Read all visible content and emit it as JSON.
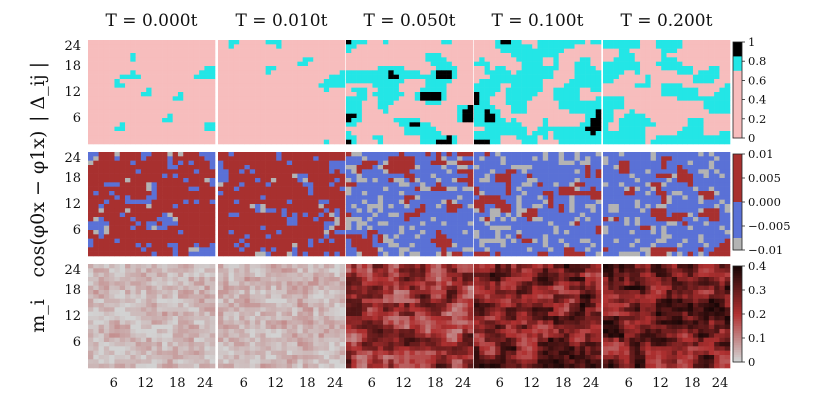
{
  "chart_data": {
    "type": "heatmap",
    "columns": [
      "T = 0.000t",
      "T = 0.010t",
      "T = 0.050t",
      "T = 0.100t",
      "T = 0.200t"
    ],
    "rows": [
      {
        "ylabel": "| Δ_ij |",
        "colorbar_ticks": [
          "1",
          "0.8",
          "0.6",
          "0.4",
          "0.2",
          "0"
        ],
        "vlim": [
          0,
          1
        ],
        "colors": {
          "low": "#f7bdbd",
          "mid": "#23e6e6",
          "high": "#000000"
        },
        "cyan_fraction": [
          0.06,
          0.05,
          0.32,
          0.58,
          0.45
        ],
        "black_fraction": [
          0.0,
          0.0,
          0.06,
          0.04,
          0.0
        ]
      },
      {
        "ylabel": "cos(φ0x − φ1x)",
        "colorbar_ticks": [
          "0.01",
          "0.005",
          "0.000",
          "−0.005",
          "−0.01"
        ],
        "vlim": [
          -0.01,
          0.01
        ],
        "colors": {
          "red": "#a8302f",
          "blue": "#5a71d6",
          "gray": "#b3b3b3"
        },
        "red_fraction": [
          0.85,
          0.88,
          0.2,
          0.15,
          0.15
        ]
      },
      {
        "ylabel": "m_i",
        "colorbar_ticks": [
          "0.4",
          "0.3",
          "0.2",
          "0.1",
          "0"
        ],
        "vlim": [
          0,
          0.4
        ],
        "colors": {
          "low": "#d2d2d2",
          "mid": "#b03030",
          "high": "#1a0606"
        },
        "mean_level": [
          0.03,
          0.035,
          0.22,
          0.27,
          0.28
        ]
      }
    ],
    "y_ticks": [
      "24",
      "18",
      "12",
      "6"
    ],
    "x_ticks": [
      "6",
      "12",
      "18",
      "24"
    ],
    "grid_size": 24
  }
}
